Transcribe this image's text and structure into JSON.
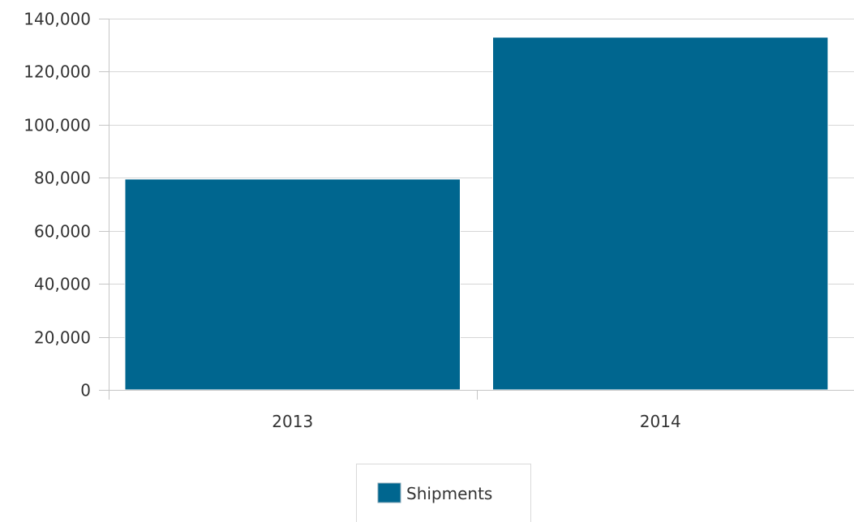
{
  "chart_data": {
    "type": "bar",
    "categories": [
      "2013",
      "2014"
    ],
    "series": [
      {
        "name": "Shipments",
        "values": [
          79500,
          133000
        ],
        "color": "#00668f"
      }
    ],
    "title": "",
    "xlabel": "",
    "ylabel": "",
    "ylim": [
      0,
      140000
    ],
    "yticks": [
      0,
      20000,
      40000,
      60000,
      80000,
      100000,
      120000,
      140000
    ],
    "ytick_labels": [
      "0",
      "20,000",
      "40,000",
      "60,000",
      "80,000",
      "100,000",
      "120,000",
      "140,000"
    ],
    "grid": true,
    "legend_position": "bottom-center"
  }
}
